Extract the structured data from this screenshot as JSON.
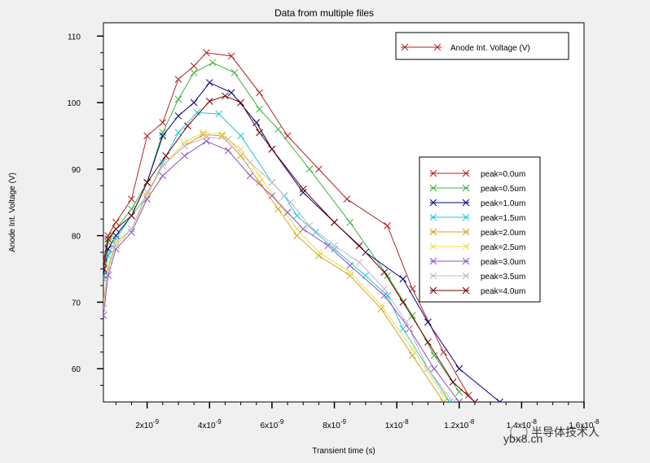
{
  "chart_data": {
    "type": "line",
    "title": "Data from multiple files",
    "xlabel": "Transient time (s)",
    "ylabel": "Anode Int. Voltage (V)",
    "xlim": [
      6e-10,
      1.6e-08
    ],
    "ylim": [
      55,
      112
    ],
    "x_ticks": [
      {
        "value": 2e-09,
        "label": "2x10-9"
      },
      {
        "value": 4e-09,
        "label": "4x10-9"
      },
      {
        "value": 6e-09,
        "label": "6x10-9"
      },
      {
        "value": 8e-09,
        "label": "8x10-9"
      },
      {
        "value": 1e-08,
        "label": "1x10-8"
      },
      {
        "value": 1.2e-08,
        "label": "1.2x10-8"
      },
      {
        "value": 1.4e-08,
        "label": "1.4x10-8"
      },
      {
        "value": 1.6e-08,
        "label": "1.6x10-8"
      }
    ],
    "y_ticks": [
      {
        "value": 60,
        "label": "60"
      },
      {
        "value": 70,
        "label": "70"
      },
      {
        "value": 80,
        "label": "80"
      },
      {
        "value": 90,
        "label": "90"
      },
      {
        "value": 100,
        "label": "100"
      },
      {
        "value": 110,
        "label": "110"
      }
    ],
    "top_legend_entry": "Anode Int. Voltage (V)",
    "series": [
      {
        "name": "peak=0.0um",
        "color": "#b22222",
        "points": [
          [
            6e-10,
            76
          ],
          [
            7.5e-10,
            80
          ],
          [
            1e-09,
            82
          ],
          [
            1.5e-09,
            85.5
          ],
          [
            2e-09,
            95
          ],
          [
            2.5e-09,
            97
          ],
          [
            3e-09,
            103.5
          ],
          [
            3.5e-09,
            105.5
          ],
          [
            3.9e-09,
            107.5
          ],
          [
            4.7e-09,
            107
          ],
          [
            5.6e-09,
            101.5
          ],
          [
            6.5e-09,
            95
          ],
          [
            7.5e-09,
            90
          ],
          [
            8.4e-09,
            85.5
          ],
          [
            9.7e-09,
            81.5
          ],
          [
            1.05e-08,
            72
          ],
          [
            1.15e-08,
            62.5
          ],
          [
            1.23e-08,
            56
          ]
        ]
      },
      {
        "name": "peak=0.5um",
        "color": "#3cb43c",
        "points": [
          [
            6e-10,
            75
          ],
          [
            7.5e-10,
            79
          ],
          [
            1e-09,
            81
          ],
          [
            1.5e-09,
            84
          ],
          [
            2e-09,
            88
          ],
          [
            2.5e-09,
            95.5
          ],
          [
            3e-09,
            100.5
          ],
          [
            3.5e-09,
            104.5
          ],
          [
            4.1e-09,
            106
          ],
          [
            4.8e-09,
            104.5
          ],
          [
            5.6e-09,
            99
          ],
          [
            6.2e-09,
            96
          ],
          [
            7.2e-09,
            90
          ],
          [
            8.5e-09,
            82
          ],
          [
            9.7e-09,
            74
          ],
          [
            1.05e-08,
            68
          ],
          [
            1.12e-08,
            62
          ],
          [
            1.2e-08,
            56.5
          ]
        ]
      },
      {
        "name": "peak=1.0um",
        "color": "#000080",
        "points": [
          [
            6e-10,
            74
          ],
          [
            7.5e-10,
            78
          ],
          [
            1e-09,
            80
          ],
          [
            1.5e-09,
            83
          ],
          [
            2e-09,
            88
          ],
          [
            2.5e-09,
            95
          ],
          [
            3e-09,
            98
          ],
          [
            3.5e-09,
            100
          ],
          [
            4e-09,
            103
          ],
          [
            4.7e-09,
            101.5
          ],
          [
            5.5e-09,
            97
          ],
          [
            6e-09,
            93
          ],
          [
            7e-09,
            86.5
          ],
          [
            8e-09,
            82
          ],
          [
            9e-09,
            77.5
          ],
          [
            1.02e-08,
            73.5
          ],
          [
            1.1e-08,
            67
          ],
          [
            1.2e-08,
            60
          ],
          [
            1.33e-08,
            55
          ]
        ]
      },
      {
        "name": "peak=1.5um",
        "color": "#20c8d8",
        "points": [
          [
            6e-10,
            73.5
          ],
          [
            7.5e-10,
            77
          ],
          [
            1e-09,
            79.5
          ],
          [
            1.5e-09,
            83
          ],
          [
            2e-09,
            86
          ],
          [
            2.5e-09,
            91
          ],
          [
            3e-09,
            95.5
          ],
          [
            3.6e-09,
            98.5
          ],
          [
            4.3e-09,
            98.3
          ],
          [
            5e-09,
            95
          ],
          [
            6e-09,
            88
          ],
          [
            6.4e-09,
            86
          ],
          [
            6.8e-09,
            83
          ],
          [
            7.4e-09,
            80.5
          ],
          [
            8e-09,
            78
          ],
          [
            9e-09,
            74
          ],
          [
            9.7e-09,
            71
          ],
          [
            1.02e-08,
            66
          ],
          [
            1.1e-08,
            60
          ],
          [
            1.17e-08,
            55
          ]
        ]
      },
      {
        "name": "peak=2.0um",
        "color": "#d8a020",
        "points": [
          [
            6e-10,
            69
          ],
          [
            7.5e-10,
            75
          ],
          [
            1e-09,
            79
          ],
          [
            1.5e-09,
            81
          ],
          [
            2e-09,
            86
          ],
          [
            2.5e-09,
            90.5
          ],
          [
            3.2e-09,
            93.5
          ],
          [
            3.8e-09,
            95.2
          ],
          [
            4.4e-09,
            95
          ],
          [
            5e-09,
            92
          ],
          [
            5.6e-09,
            88
          ],
          [
            6.2e-09,
            84
          ],
          [
            6.8e-09,
            80
          ],
          [
            7.5e-09,
            77
          ],
          [
            8.5e-09,
            74
          ],
          [
            9.5e-09,
            69
          ],
          [
            1.05e-08,
            62
          ],
          [
            1.15e-08,
            55
          ]
        ]
      },
      {
        "name": "peak=2.5um",
        "color": "#e8e050",
        "points": [
          [
            6e-10,
            70
          ],
          [
            7.5e-10,
            75.5
          ],
          [
            1e-09,
            79
          ],
          [
            1.5e-09,
            81
          ],
          [
            2e-09,
            86
          ],
          [
            2.5e-09,
            90.5
          ],
          [
            3.2e-09,
            94
          ],
          [
            3.8e-09,
            95.5
          ],
          [
            4.4e-09,
            95.2
          ],
          [
            5e-09,
            93
          ],
          [
            5.6e-09,
            89
          ],
          [
            6.2e-09,
            85
          ],
          [
            6.8e-09,
            81
          ],
          [
            7.5e-09,
            77.5
          ],
          [
            8.5e-09,
            74.5
          ],
          [
            9.5e-09,
            69.5
          ],
          [
            1.05e-08,
            63
          ],
          [
            1.15e-08,
            56
          ]
        ]
      },
      {
        "name": "peak=3.0um",
        "color": "#9050c0",
        "points": [
          [
            6e-10,
            68
          ],
          [
            7.5e-10,
            74
          ],
          [
            1e-09,
            78
          ],
          [
            1.5e-09,
            80.5
          ],
          [
            2e-09,
            85.5
          ],
          [
            2.5e-09,
            89
          ],
          [
            3.2e-09,
            92
          ],
          [
            3.9e-09,
            94.2
          ],
          [
            4.6e-09,
            92.8
          ],
          [
            5.3e-09,
            89
          ],
          [
            6e-09,
            86
          ],
          [
            6.5e-09,
            83.5
          ],
          [
            7e-09,
            81
          ],
          [
            7.8e-09,
            78.5
          ],
          [
            8.5e-09,
            75.5
          ],
          [
            9.6e-09,
            71
          ],
          [
            1.04e-08,
            66
          ],
          [
            1.12e-08,
            60
          ],
          [
            1.2e-08,
            55
          ]
        ]
      },
      {
        "name": "peak=3.5um",
        "color": "#c8b4c0",
        "points": [
          [
            6e-10,
            69
          ],
          [
            7.5e-10,
            75
          ],
          [
            1e-09,
            78.5
          ],
          [
            1.5e-09,
            81
          ],
          [
            2e-09,
            86.5
          ],
          [
            2.5e-09,
            90.5
          ],
          [
            3.2e-09,
            93.5
          ],
          [
            3.9e-09,
            94.8
          ],
          [
            4.6e-09,
            94.5
          ],
          [
            5.3e-09,
            91
          ],
          [
            6e-09,
            88
          ],
          [
            6.6e-09,
            85
          ],
          [
            7.2e-09,
            81.5
          ],
          [
            8e-09,
            78.5
          ],
          [
            8.8e-09,
            76
          ],
          [
            9.6e-09,
            72
          ],
          [
            1.03e-08,
            67
          ],
          [
            1.1e-08,
            60
          ],
          [
            1.18e-08,
            55
          ]
        ]
      },
      {
        "name": "peak=4.0um",
        "color": "#700000",
        "points": [
          [
            6e-10,
            75
          ],
          [
            7.5e-10,
            79.5
          ],
          [
            1e-09,
            81
          ],
          [
            1.5e-09,
            83
          ],
          [
            2e-09,
            88
          ],
          [
            2.6e-09,
            92
          ],
          [
            3.3e-09,
            96.5
          ],
          [
            4e-09,
            100.2
          ],
          [
            4.5e-09,
            101
          ],
          [
            5e-09,
            100
          ],
          [
            5.6e-09,
            95.5
          ],
          [
            6e-09,
            93
          ],
          [
            7e-09,
            87
          ],
          [
            8e-09,
            82
          ],
          [
            8.8e-09,
            78.5
          ],
          [
            9.6e-09,
            74.5
          ],
          [
            1.02e-08,
            70
          ],
          [
            1.1e-08,
            64
          ],
          [
            1.18e-08,
            58
          ],
          [
            1.25e-08,
            55
          ]
        ]
      }
    ]
  },
  "watermark": "半导体技术人",
  "watermark_url": "ybx8.cn"
}
